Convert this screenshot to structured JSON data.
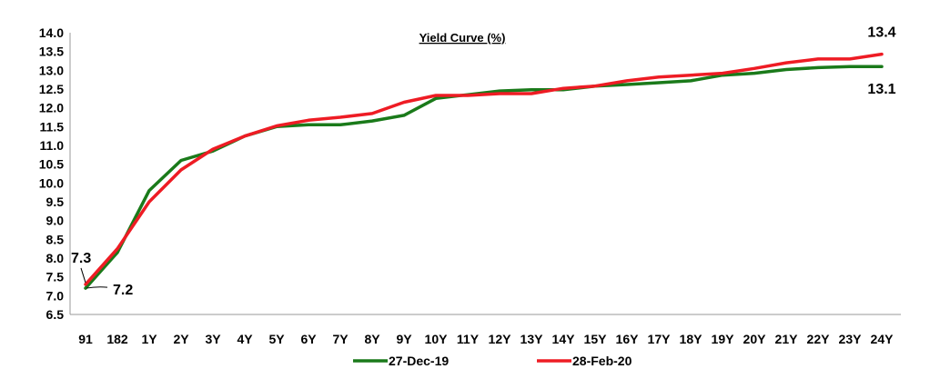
{
  "chart_data": {
    "type": "line",
    "title": "Yield Curve (%)",
    "xlabel": "",
    "ylabel": "",
    "ylim": [
      6.5,
      14.0
    ],
    "ytick_step": 0.5,
    "grid": false,
    "legend_position": "bottom",
    "categories": [
      "91",
      "182",
      "1Y",
      "2Y",
      "3Y",
      "4Y",
      "5Y",
      "6Y",
      "7Y",
      "8Y",
      "9Y",
      "10Y",
      "11Y",
      "12Y",
      "13Y",
      "14Y",
      "15Y",
      "16Y",
      "17Y",
      "18Y",
      "19Y",
      "20Y",
      "21Y",
      "22Y",
      "23Y",
      "24Y"
    ],
    "series": [
      {
        "name": "27-Dec-19",
        "color": "#1a7a1a",
        "values": [
          7.2,
          8.15,
          9.8,
          10.6,
          10.85,
          11.25,
          11.5,
          11.55,
          11.55,
          11.65,
          11.8,
          12.25,
          12.35,
          12.45,
          12.48,
          12.48,
          12.58,
          12.62,
          12.67,
          12.72,
          12.87,
          12.92,
          13.02,
          13.07,
          13.1,
          13.1
        ]
      },
      {
        "name": "28-Feb-20",
        "color": "#ee1c24",
        "values": [
          7.3,
          8.25,
          9.5,
          10.35,
          10.9,
          11.25,
          11.52,
          11.67,
          11.75,
          11.85,
          12.15,
          12.33,
          12.33,
          12.38,
          12.38,
          12.52,
          12.58,
          12.72,
          12.82,
          12.87,
          12.92,
          13.05,
          13.2,
          13.3,
          13.3,
          13.43
        ]
      }
    ],
    "annotations": [
      {
        "series": 0,
        "index": 0,
        "text": "7.2"
      },
      {
        "series": 1,
        "index": 0,
        "text": "7.3"
      },
      {
        "series": 0,
        "index": 25,
        "text": "13.1"
      },
      {
        "series": 1,
        "index": 25,
        "text": "13.4"
      }
    ]
  }
}
